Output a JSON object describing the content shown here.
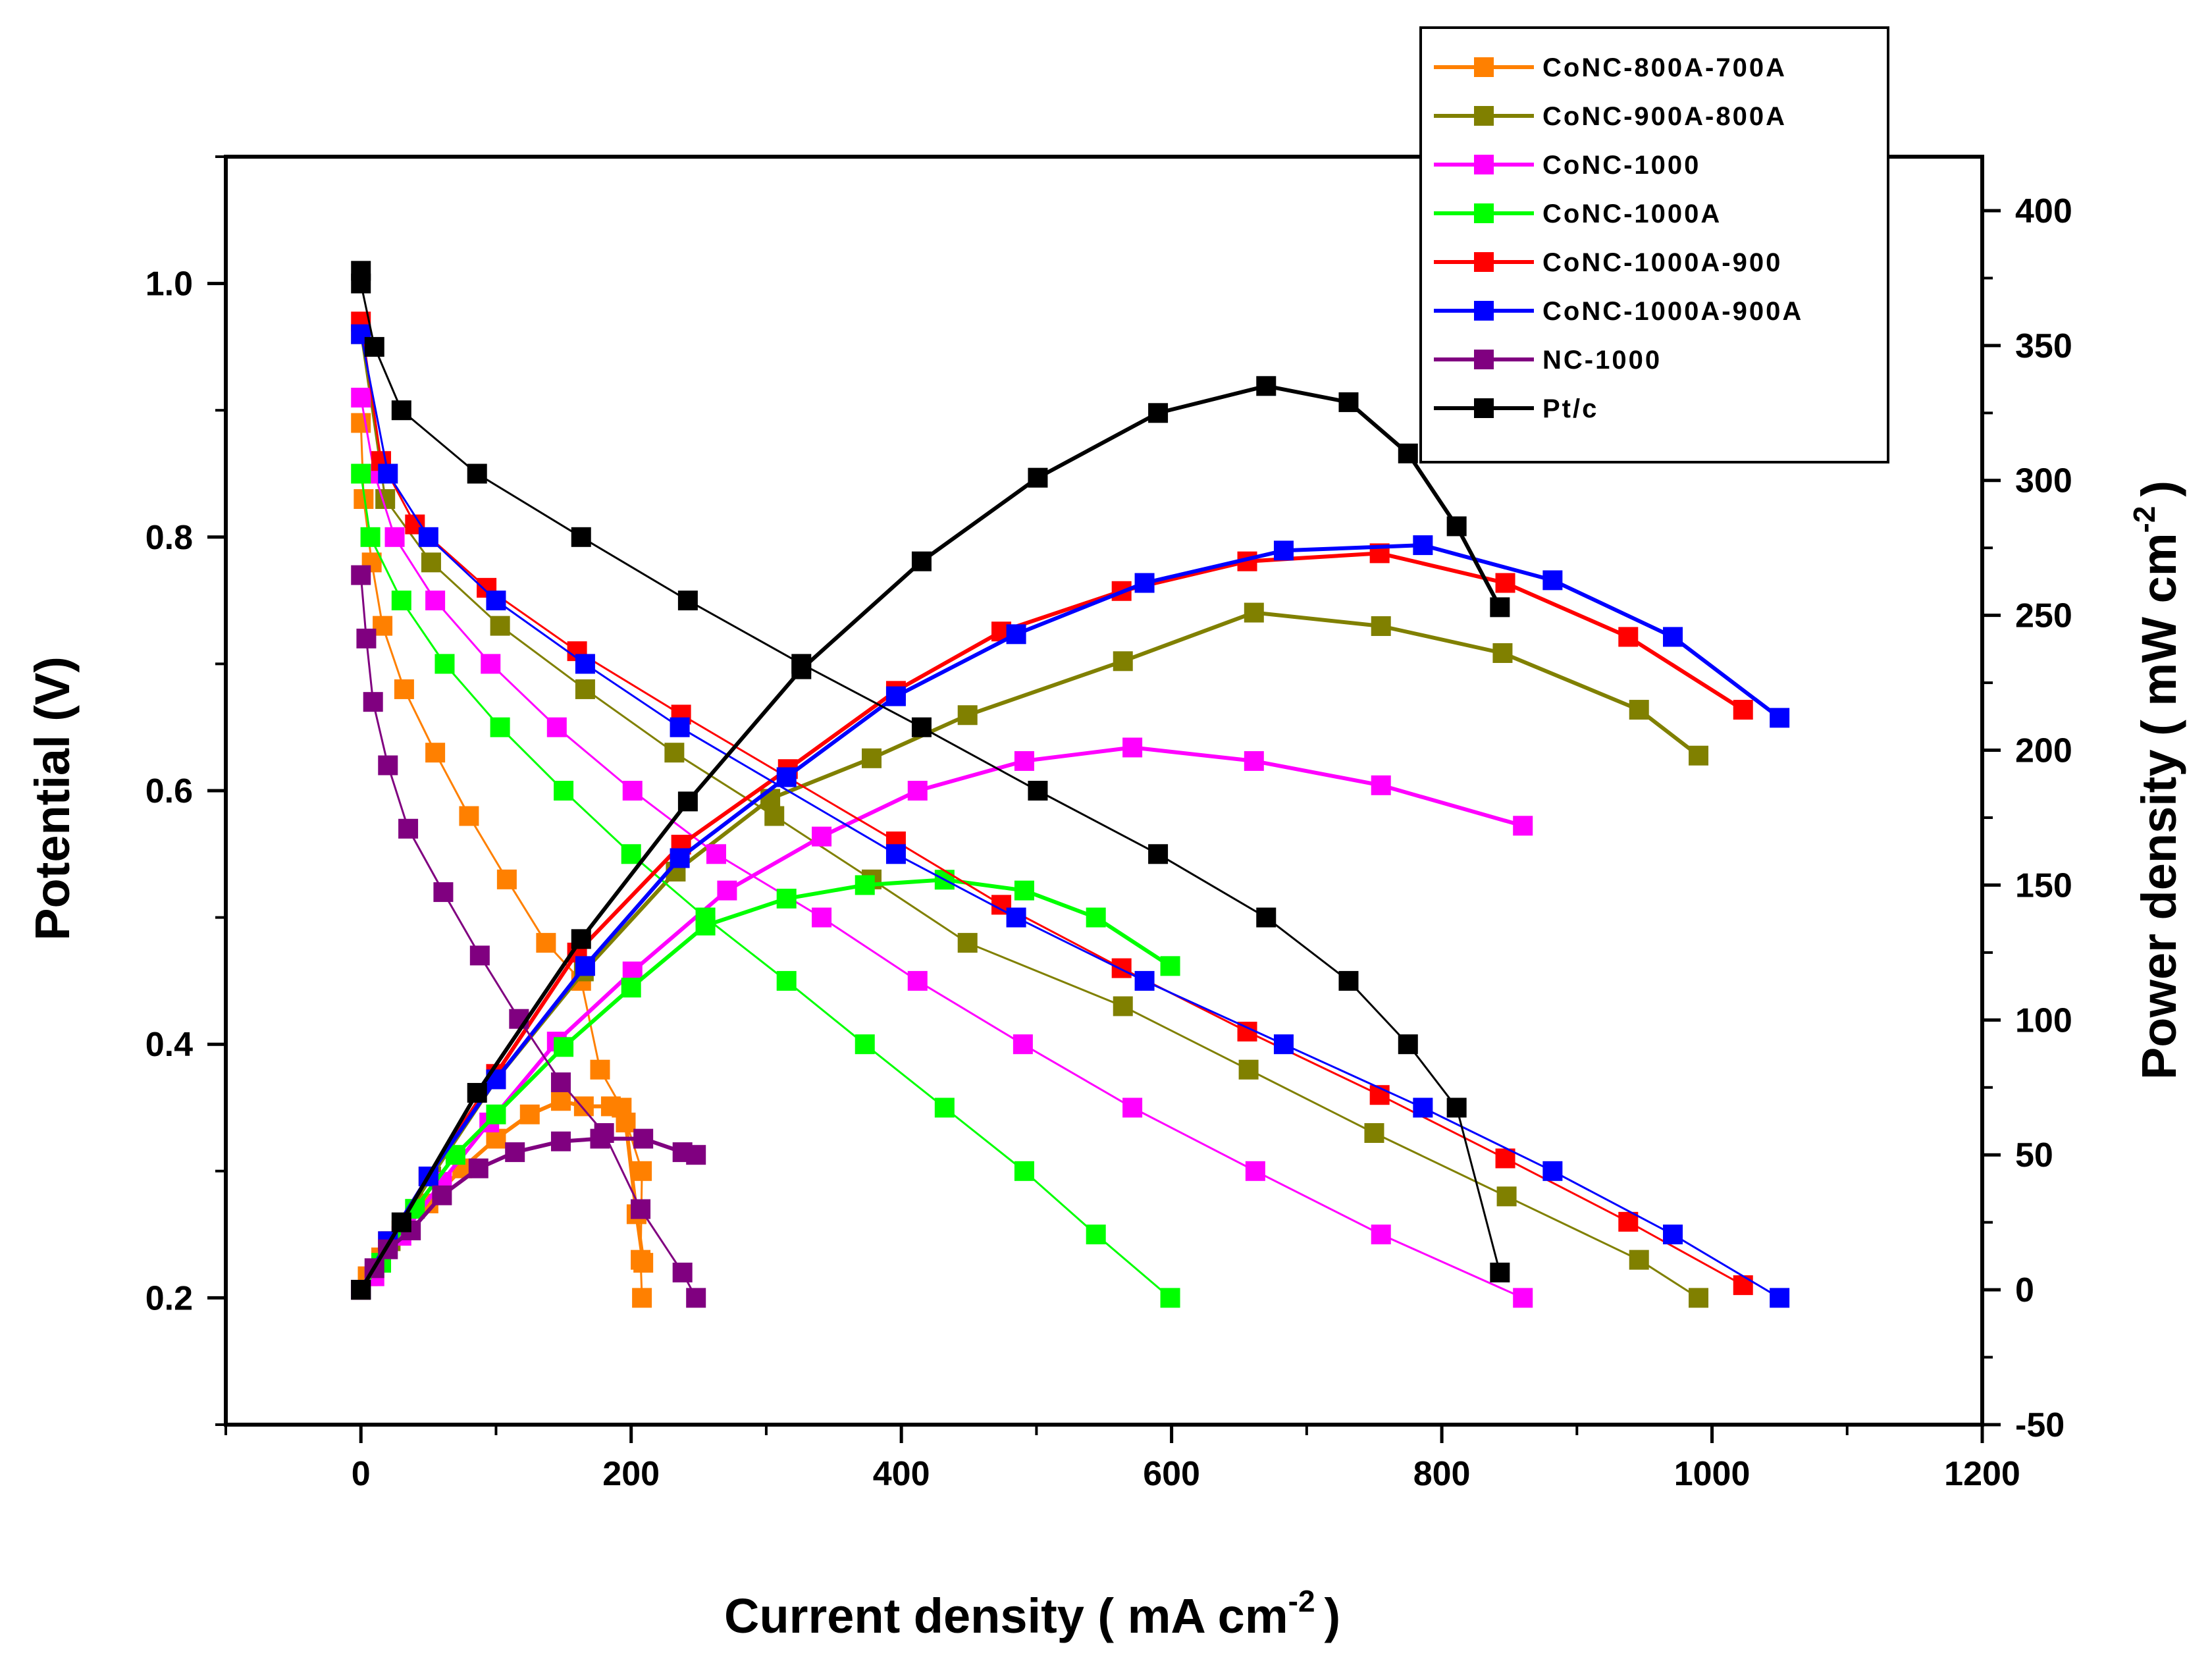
{
  "chart_data": {
    "type": "line",
    "title": "",
    "xlabel": "Current density ( mA cm",
    "xlabel_exp": "-2",
    "xlabel_close": ")",
    "ylabel": "Potential (V)",
    "y2label": "Power density ( mW cm",
    "y2label_exp": "-2",
    "y2label_close": ")",
    "xlim": [
      -100,
      1200
    ],
    "ylim": [
      0.1,
      1.1
    ],
    "y2lim": [
      -50,
      420
    ],
    "xticks": [
      "0",
      "200",
      "400",
      "600",
      "800",
      "1000",
      "1200"
    ],
    "xtick_values": [
      0,
      200,
      400,
      600,
      800,
      1000,
      1200
    ],
    "yticks": [
      "0.2",
      "0.4",
      "0.6",
      "0.8",
      "1.0"
    ],
    "ytick_values": [
      0.2,
      0.4,
      0.6,
      0.8,
      1.0
    ],
    "y2ticks": [
      "-50",
      "0",
      "50",
      "100",
      "150",
      "200",
      "250",
      "300",
      "350",
      "400"
    ],
    "y2tick_values": [
      -50,
      0,
      50,
      100,
      150,
      200,
      250,
      300,
      350,
      400
    ],
    "legend_position": "top-right",
    "series": [
      {
        "name": "CoNC-800A-700A",
        "color": "#ff8000",
        "polarization": [
          [
            0,
            0.89
          ],
          [
            2,
            0.83
          ],
          [
            8,
            0.78
          ],
          [
            16,
            0.73
          ],
          [
            32,
            0.68
          ],
          [
            55,
            0.63
          ],
          [
            80,
            0.58
          ],
          [
            108,
            0.53
          ],
          [
            137,
            0.48
          ],
          [
            163,
            0.45
          ],
          [
            177,
            0.38
          ],
          [
            193,
            0.35
          ],
          [
            208,
            0.3
          ],
          [
            207,
            0.23
          ],
          [
            208,
            0.2
          ]
        ],
        "power": [
          [
            0,
            0
          ],
          [
            5,
            5
          ],
          [
            15,
            12
          ],
          [
            30,
            22
          ],
          [
            50,
            32
          ],
          [
            75,
            45
          ],
          [
            100,
            56
          ],
          [
            125,
            65
          ],
          [
            148,
            70
          ],
          [
            165,
            68
          ],
          [
            185,
            68
          ],
          [
            196,
            62
          ],
          [
            204,
            28
          ],
          [
            209,
            10
          ]
        ]
      },
      {
        "name": "CoNC-900A-800A",
        "color": "#808000",
        "polarization": [
          [
            0,
            0.96
          ],
          [
            18,
            0.83
          ],
          [
            52,
            0.78
          ],
          [
            103,
            0.73
          ],
          [
            166,
            0.68
          ],
          [
            232,
            0.63
          ],
          [
            306,
            0.58
          ],
          [
            378,
            0.53
          ],
          [
            449,
            0.48
          ],
          [
            564,
            0.43
          ],
          [
            657,
            0.38
          ],
          [
            750,
            0.33
          ],
          [
            848,
            0.28
          ],
          [
            946,
            0.23
          ],
          [
            990,
            0.2
          ]
        ],
        "power": [
          [
            0,
            0
          ],
          [
            22,
            18
          ],
          [
            52,
            42
          ],
          [
            100,
            78
          ],
          [
            165,
            118
          ],
          [
            233,
            155
          ],
          [
            303,
            182
          ],
          [
            378,
            197
          ],
          [
            449,
            213
          ],
          [
            564,
            233
          ],
          [
            661,
            251
          ],
          [
            755,
            246
          ],
          [
            845,
            236
          ],
          [
            946,
            215
          ],
          [
            990,
            198
          ]
        ]
      },
      {
        "name": "CoNC-1000",
        "color": "#ff00ff",
        "polarization": [
          [
            0,
            0.91
          ],
          [
            10,
            0.85
          ],
          [
            25,
            0.8
          ],
          [
            55,
            0.75
          ],
          [
            96,
            0.7
          ],
          [
            145,
            0.65
          ],
          [
            201,
            0.6
          ],
          [
            263,
            0.55
          ],
          [
            341,
            0.5
          ],
          [
            412,
            0.45
          ],
          [
            490,
            0.4
          ],
          [
            571,
            0.35
          ],
          [
            662,
            0.3
          ],
          [
            755,
            0.25
          ],
          [
            860,
            0.2
          ]
        ],
        "power": [
          [
            0,
            0
          ],
          [
            10,
            5
          ],
          [
            30,
            20
          ],
          [
            60,
            40
          ],
          [
            95,
            62
          ],
          [
            145,
            92
          ],
          [
            201,
            118
          ],
          [
            271,
            148
          ],
          [
            341,
            168
          ],
          [
            412,
            185
          ],
          [
            491,
            196
          ],
          [
            571,
            201
          ],
          [
            661,
            196
          ],
          [
            755,
            187
          ],
          [
            860,
            172
          ]
        ]
      },
      {
        "name": "CoNC-1000A",
        "color": "#00ff00",
        "polarization": [
          [
            0,
            0.85
          ],
          [
            7,
            0.8
          ],
          [
            30,
            0.75
          ],
          [
            62,
            0.7
          ],
          [
            103,
            0.65
          ],
          [
            150,
            0.6
          ],
          [
            200,
            0.55
          ],
          [
            255,
            0.5
          ],
          [
            315,
            0.45
          ],
          [
            373,
            0.4
          ],
          [
            432,
            0.35
          ],
          [
            491,
            0.3
          ],
          [
            544,
            0.25
          ],
          [
            599,
            0.2
          ]
        ],
        "power": [
          [
            0,
            0
          ],
          [
            15,
            10
          ],
          [
            40,
            30
          ],
          [
            70,
            50
          ],
          [
            100,
            65
          ],
          [
            150,
            90
          ],
          [
            200,
            112
          ],
          [
            255,
            135
          ],
          [
            315,
            145
          ],
          [
            373,
            150
          ],
          [
            432,
            152
          ],
          [
            491,
            148
          ],
          [
            544,
            138
          ],
          [
            599,
            120
          ]
        ]
      },
      {
        "name": "CoNC-1000A-900",
        "color": "#ff0000",
        "polarization": [
          [
            0,
            0.97
          ],
          [
            15,
            0.86
          ],
          [
            40,
            0.81
          ],
          [
            93,
            0.76
          ],
          [
            160,
            0.71
          ],
          [
            237,
            0.66
          ],
          [
            396,
            0.56
          ],
          [
            474,
            0.51
          ],
          [
            563,
            0.46
          ],
          [
            656,
            0.41
          ],
          [
            754,
            0.36
          ],
          [
            847,
            0.31
          ],
          [
            938,
            0.26
          ],
          [
            1023,
            0.21
          ]
        ],
        "power": [
          [
            0,
            0
          ],
          [
            20,
            18
          ],
          [
            50,
            42
          ],
          [
            100,
            80
          ],
          [
            160,
            125
          ],
          [
            237,
            165
          ],
          [
            316,
            193
          ],
          [
            396,
            222
          ],
          [
            474,
            244
          ],
          [
            563,
            259
          ],
          [
            656,
            270
          ],
          [
            754,
            273
          ],
          [
            847,
            262
          ],
          [
            938,
            242
          ],
          [
            1023,
            215
          ]
        ]
      },
      {
        "name": "CoNC-1000A-900A",
        "color": "#0000ff",
        "polarization": [
          [
            0,
            0.96
          ],
          [
            20,
            0.85
          ],
          [
            50,
            0.8
          ],
          [
            100,
            0.75
          ],
          [
            166,
            0.7
          ],
          [
            236,
            0.65
          ],
          [
            396,
            0.55
          ],
          [
            485,
            0.5
          ],
          [
            580,
            0.45
          ],
          [
            683,
            0.4
          ],
          [
            786,
            0.35
          ],
          [
            882,
            0.3
          ],
          [
            971,
            0.25
          ],
          [
            1050,
            0.2
          ]
        ],
        "power": [
          [
            0,
            0
          ],
          [
            20,
            18
          ],
          [
            50,
            42
          ],
          [
            100,
            78
          ],
          [
            166,
            120
          ],
          [
            236,
            160
          ],
          [
            315,
            190
          ],
          [
            396,
            220
          ],
          [
            485,
            243
          ],
          [
            580,
            262
          ],
          [
            683,
            274
          ],
          [
            786,
            276
          ],
          [
            882,
            263
          ],
          [
            971,
            242
          ],
          [
            1050,
            212
          ]
        ]
      },
      {
        "name": "NC-1000",
        "color": "#800080",
        "polarization": [
          [
            0,
            0.77
          ],
          [
            4,
            0.72
          ],
          [
            9,
            0.67
          ],
          [
            20,
            0.62
          ],
          [
            35,
            0.57
          ],
          [
            61,
            0.52
          ],
          [
            88,
            0.47
          ],
          [
            117,
            0.42
          ],
          [
            148,
            0.37
          ],
          [
            180,
            0.33
          ],
          [
            207,
            0.27
          ],
          [
            238,
            0.22
          ],
          [
            248,
            0.2
          ]
        ],
        "power": [
          [
            0,
            0
          ],
          [
            10,
            8
          ],
          [
            20,
            15
          ],
          [
            37,
            22
          ],
          [
            60,
            35
          ],
          [
            87,
            45
          ],
          [
            114,
            51
          ],
          [
            148,
            55
          ],
          [
            177,
            56
          ],
          [
            209,
            56
          ],
          [
            238,
            51
          ],
          [
            248,
            50
          ]
        ]
      },
      {
        "name": "Pt/c",
        "color": "#000000",
        "polarization": [
          [
            0,
            1.01
          ],
          [
            0,
            1.0
          ],
          [
            10,
            0.95
          ],
          [
            30,
            0.9
          ],
          [
            86,
            0.85
          ],
          [
            163,
            0.8
          ],
          [
            242,
            0.75
          ],
          [
            326,
            0.7
          ],
          [
            415,
            0.65
          ],
          [
            501,
            0.6
          ],
          [
            590,
            0.55
          ],
          [
            670,
            0.5
          ],
          [
            731,
            0.45
          ],
          [
            775,
            0.4
          ],
          [
            811,
            0.35
          ],
          [
            843,
            0.22
          ]
        ],
        "power": [
          [
            0,
            0
          ],
          [
            30,
            25
          ],
          [
            86,
            73
          ],
          [
            163,
            130
          ],
          [
            242,
            181
          ],
          [
            326,
            230
          ],
          [
            415,
            270
          ],
          [
            501,
            301
          ],
          [
            590,
            325
          ],
          [
            670,
            335
          ],
          [
            731,
            329
          ],
          [
            775,
            310
          ],
          [
            811,
            283
          ],
          [
            843,
            253
          ]
        ]
      }
    ]
  }
}
